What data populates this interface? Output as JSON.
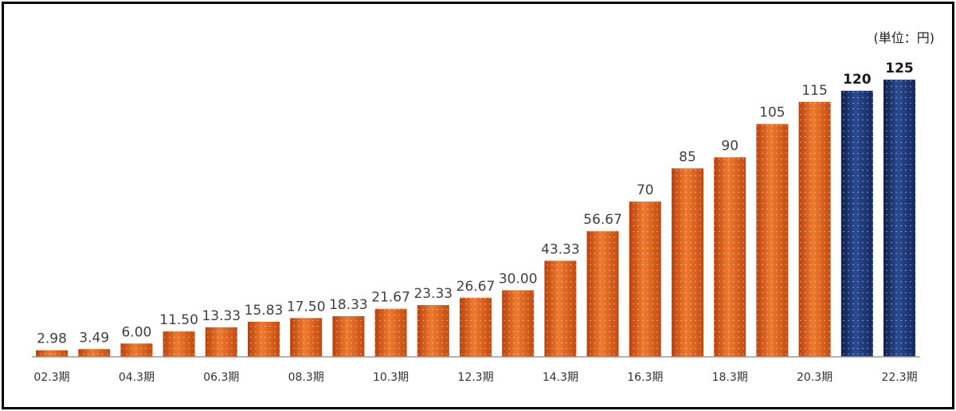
{
  "chart_data": {
    "type": "bar",
    "unit_label": "(単位：円)",
    "categories": [
      "02.3期",
      "03.3期",
      "04.3期",
      "05.3期",
      "06.3期",
      "07.3期",
      "08.3期",
      "09.3期",
      "10.3期",
      "11.3期",
      "12.3期",
      "13.3期",
      "14.3期",
      "15.3期",
      "16.3期",
      "17.3期",
      "18.3期",
      "19.3期",
      "20.3期",
      "21.3期",
      "22.3期"
    ],
    "tick_labels_shown": [
      "02.3期",
      "04.3期",
      "06.3期",
      "08.3期",
      "10.3期",
      "12.3期",
      "14.3期",
      "16.3期",
      "18.3期",
      "20.3期",
      "22.3期"
    ],
    "values": [
      2.98,
      3.49,
      6.0,
      11.5,
      13.33,
      15.83,
      17.5,
      18.33,
      21.67,
      23.33,
      26.67,
      30.0,
      43.33,
      56.67,
      70,
      85,
      90,
      105,
      115,
      120,
      125
    ],
    "value_labels": [
      "2.98",
      "3.49",
      "6.00",
      "11.50",
      "13.33",
      "15.83",
      "17.50",
      "18.33",
      "21.67",
      "23.33",
      "26.67",
      "30.00",
      "43.33",
      "56.67",
      "70",
      "85",
      "90",
      "105",
      "115",
      "120",
      "125"
    ],
    "highlight": [
      false,
      false,
      false,
      false,
      false,
      false,
      false,
      false,
      false,
      false,
      false,
      false,
      false,
      false,
      false,
      false,
      false,
      false,
      false,
      true,
      true
    ],
    "ylim": [
      0,
      125
    ],
    "grid": false,
    "colors": {
      "actual": "#E8641B",
      "actual_dark": "#B8410C",
      "forecast": "#1F3A7A",
      "forecast_dark": "#0F1F4D",
      "axis": "#9a9a9a"
    }
  }
}
